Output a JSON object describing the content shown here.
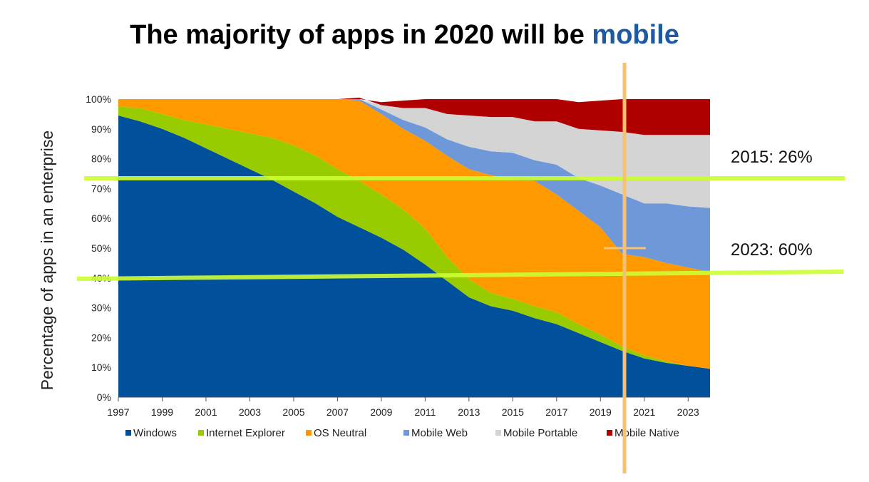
{
  "title": {
    "prefix": "The majority of apps in 2020 will be ",
    "highlight": "mobile"
  },
  "annotations": {
    "label_2015": "2015: 26%",
    "label_2023": "2023: 60%"
  },
  "colors": {
    "windows": "#00509b",
    "internet_explorer": "#99cc00",
    "os_neutral": "#ff9900",
    "mobile_web": "#6f98d8",
    "mobile_portable": "#d4d4d4",
    "mobile_native": "#b00000",
    "highlight_line": "#ccff33",
    "marker_line": "#f7c173"
  },
  "chart_data": {
    "type": "area",
    "stacked": true,
    "ylabel": "Percentage of apps in an enterprise",
    "xlabel": "",
    "ylim": [
      0,
      100
    ],
    "xlim": [
      1997,
      2024
    ],
    "y_ticks": [
      "0%",
      "10%",
      "20%",
      "30%",
      "40%",
      "50%",
      "60%",
      "70%",
      "80%",
      "90%",
      "100%"
    ],
    "x_ticks": [
      "1997",
      "1999",
      "2001",
      "2003",
      "2005",
      "2007",
      "2009",
      "2011",
      "2013",
      "2015",
      "2017",
      "2019",
      "2021",
      "2023"
    ],
    "legend_position": "bottom",
    "x": [
      1997,
      1998,
      1999,
      2000,
      2001,
      2002,
      2003,
      2004,
      2005,
      2006,
      2007,
      2008,
      2009,
      2010,
      2011,
      2012,
      2013,
      2014,
      2015,
      2016,
      2017,
      2018,
      2019,
      2020,
      2021,
      2022,
      2023,
      2024
    ],
    "series": [
      {
        "name": "Windows",
        "key": "windows",
        "values": [
          94.5,
          92.5,
          90,
          87,
          83.5,
          80,
          76.5,
          73,
          69,
          65,
          60.5,
          57,
          53.5,
          49.5,
          44.5,
          39,
          33.5,
          30.5,
          29,
          26.5,
          24.5,
          21.5,
          18.5,
          15.5,
          13,
          11.5,
          10.5,
          9.5
        ]
      },
      {
        "name": "Internet Explorer",
        "key": "internet_explorer",
        "values": [
          3,
          4.5,
          5,
          6,
          8,
          10,
          12,
          14,
          15.5,
          16,
          16,
          15.5,
          14.5,
          13.5,
          12,
          8,
          6,
          4.5,
          4,
          4,
          4,
          3,
          2.5,
          1.5,
          1,
          0.5,
          0,
          0
        ]
      },
      {
        "name": "OS Neutral",
        "key": "os_neutral",
        "values": [
          2.5,
          3,
          5,
          7,
          8.5,
          10,
          11.5,
          13,
          15.5,
          19,
          23.5,
          27,
          27,
          27,
          29.5,
          34,
          37,
          39.5,
          40,
          42,
          39.5,
          38,
          36,
          31,
          33,
          33,
          33,
          32.5
        ]
      },
      {
        "name": "Mobile Web",
        "key": "mobile_web",
        "values": [
          0,
          0,
          0,
          0,
          0,
          0,
          0,
          0,
          0,
          0,
          0,
          0.5,
          1.5,
          3,
          4.5,
          5.5,
          7.5,
          8,
          9,
          7,
          10,
          11,
          14,
          20,
          18,
          20,
          20.5,
          21.5
        ]
      },
      {
        "name": "Mobile Portable",
        "key": "mobile_portable",
        "values": [
          0,
          0,
          0,
          0,
          0,
          0,
          0,
          0,
          0,
          0,
          0,
          0.5,
          1.5,
          4,
          6.5,
          8.5,
          10.5,
          11.5,
          12,
          13,
          14.5,
          16.5,
          18.5,
          21,
          23,
          23,
          24,
          24.5
        ]
      },
      {
        "name": "Mobile Native",
        "key": "mobile_native",
        "values": [
          0,
          0,
          0,
          0,
          0,
          0,
          0,
          0,
          0,
          0,
          0,
          0.5,
          1,
          2.5,
          3,
          5,
          5.5,
          6,
          6,
          7.5,
          7.5,
          9,
          10,
          11,
          12,
          12,
          12,
          12
        ]
      }
    ]
  }
}
